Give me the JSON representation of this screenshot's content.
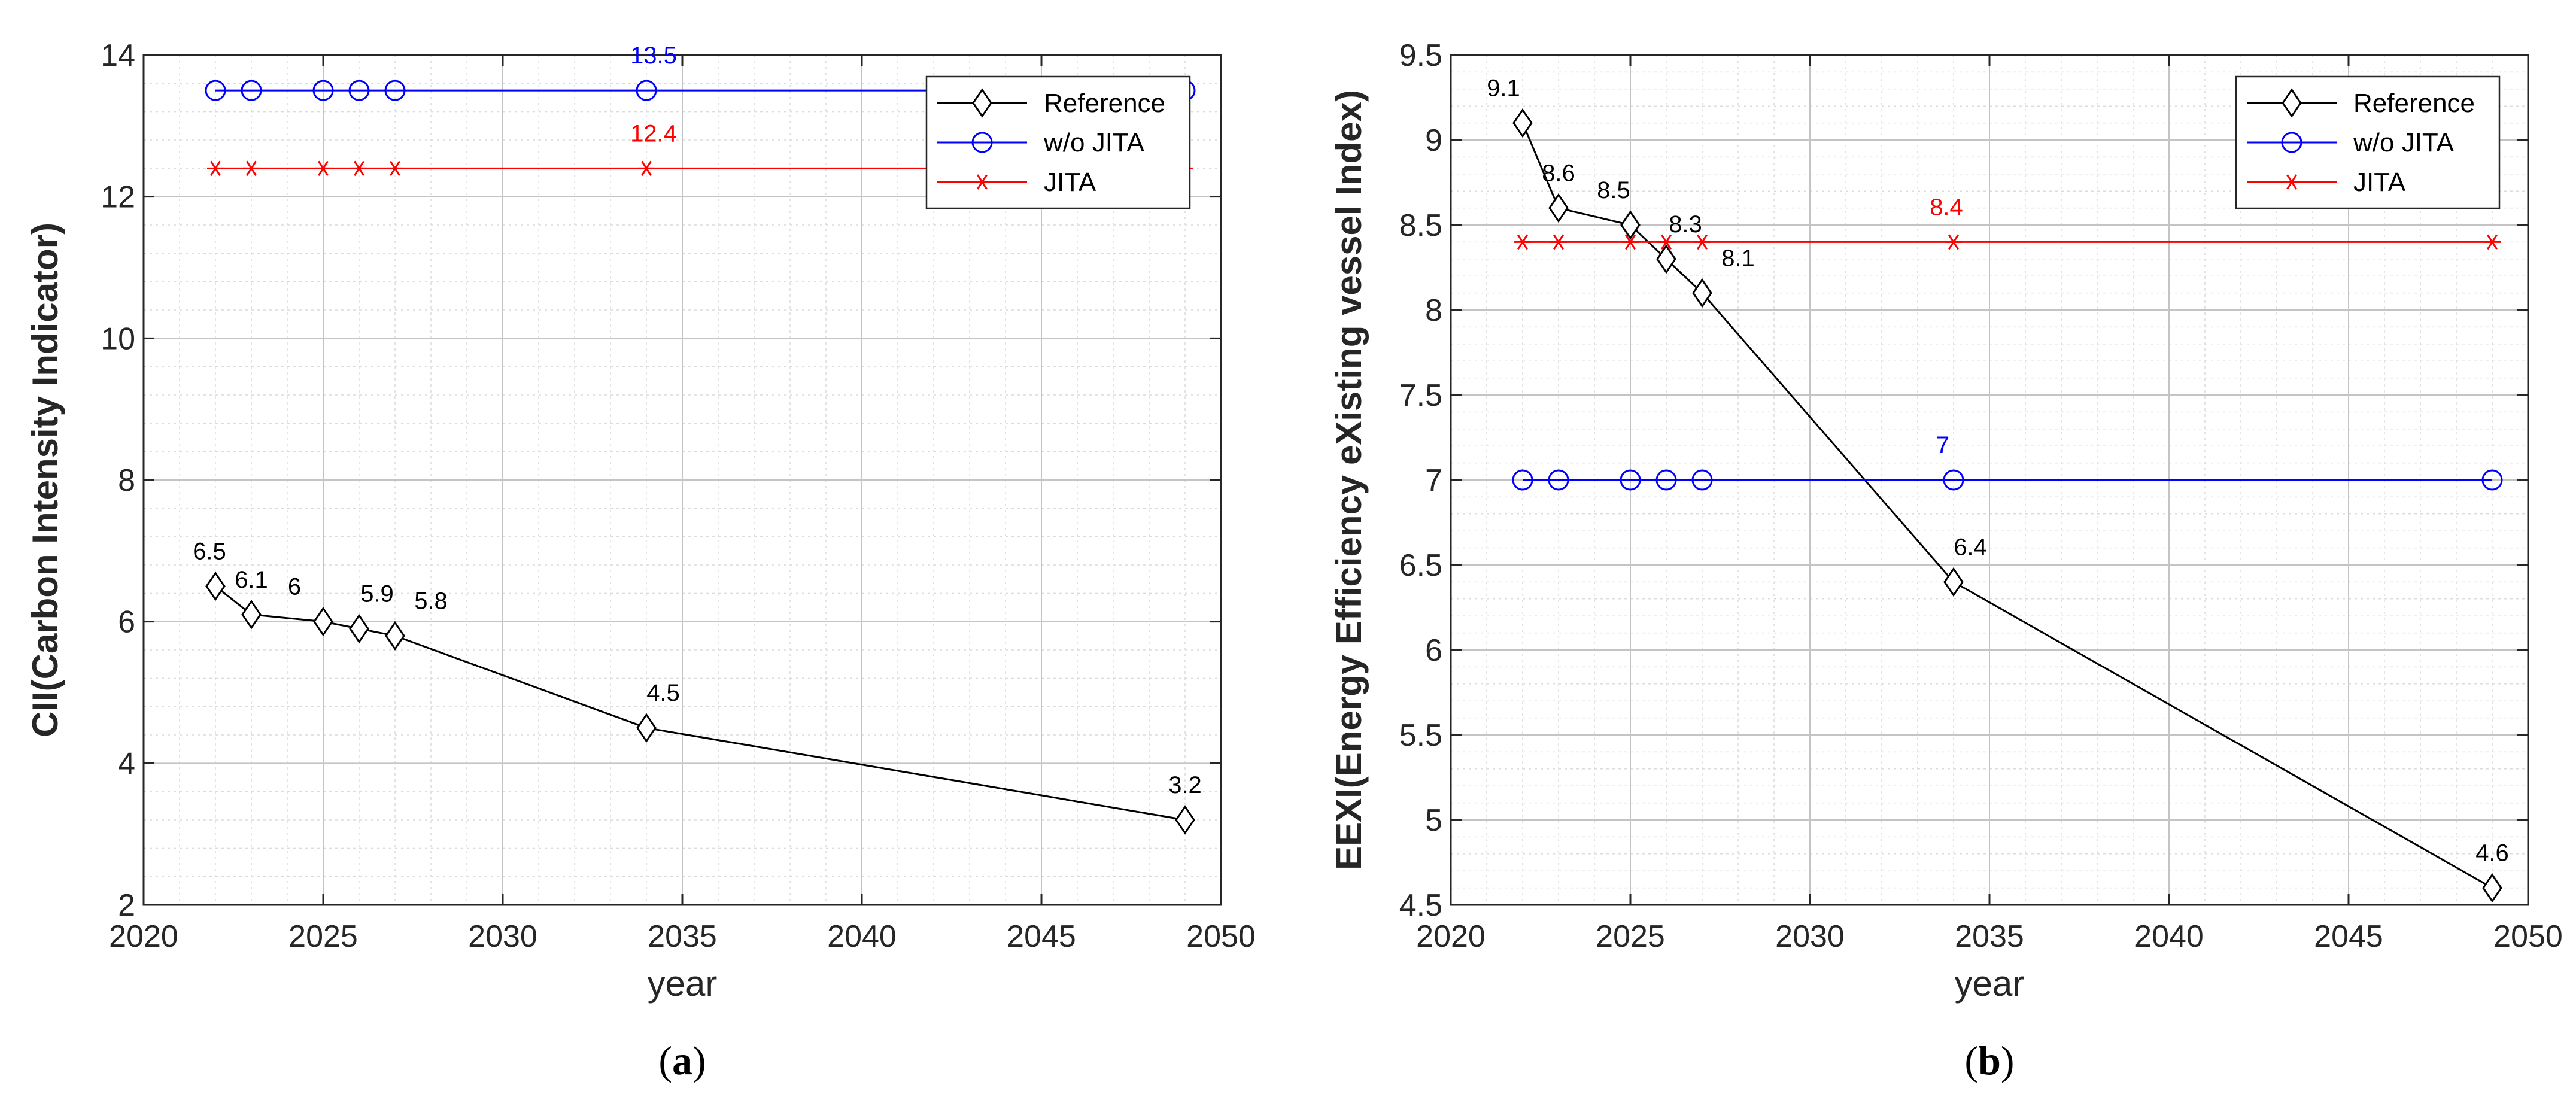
{
  "chart_data": [
    {
      "type": "line",
      "panel_label": "a",
      "caption_open": "(",
      "caption_close": ")",
      "xlabel": "year",
      "ylabel": "CII(Carbon Intensity Indicator)",
      "xlim": [
        2020,
        2050
      ],
      "ylim": [
        2,
        14
      ],
      "xticks": [
        2020,
        2025,
        2030,
        2035,
        2040,
        2045,
        2050
      ],
      "yticks": [
        2,
        4,
        6,
        8,
        10,
        12,
        14
      ],
      "grid": true,
      "legend_position": "top-right",
      "series": [
        {
          "name": "Reference",
          "color": "#000000",
          "marker": "diamond",
          "x": [
            2022,
            2023,
            2025,
            2026,
            2027,
            2034,
            2049
          ],
          "y": [
            6.5,
            6.1,
            6.0,
            5.9,
            5.8,
            4.5,
            3.2
          ]
        },
        {
          "name": "w/o JITA",
          "color": "#0000ff",
          "marker": "circle",
          "x": [
            2022,
            2023,
            2025,
            2026,
            2027,
            2034,
            2049
          ],
          "y": [
            13.5,
            13.5,
            13.5,
            13.5,
            13.5,
            13.5,
            13.5
          ]
        },
        {
          "name": "JITA",
          "color": "#ff0000",
          "marker": "asterisk",
          "x": [
            2022,
            2023,
            2025,
            2026,
            2027,
            2034,
            2049
          ],
          "y": [
            12.4,
            12.4,
            12.4,
            12.4,
            12.4,
            12.4,
            12.4
          ]
        }
      ],
      "annotations": [
        {
          "text": "6.5",
          "x": 2022,
          "y": 6.5,
          "series": 0,
          "dx": -10,
          "dy": -45
        },
        {
          "text": "6.1",
          "x": 2023,
          "y": 6.1,
          "series": 0,
          "dx": 0,
          "dy": -45
        },
        {
          "text": "6",
          "x": 2025,
          "y": 6.0,
          "series": 0,
          "dx": -48,
          "dy": -45
        },
        {
          "text": "5.9",
          "x": 2026,
          "y": 5.9,
          "series": 0,
          "dx": 30,
          "dy": -45
        },
        {
          "text": "5.8",
          "x": 2027,
          "y": 5.8,
          "series": 0,
          "dx": 60,
          "dy": -45
        },
        {
          "text": "4.5",
          "x": 2034,
          "y": 4.5,
          "series": 0,
          "dx": 28,
          "dy": -45
        },
        {
          "text": "3.2",
          "x": 2049,
          "y": 3.2,
          "series": 0,
          "dx": 0,
          "dy": -45
        },
        {
          "text": "13.5",
          "x": 2034,
          "y": 13.5,
          "series": 1,
          "dx": 12,
          "dy": -45
        },
        {
          "text": "12.4",
          "x": 2034,
          "y": 12.4,
          "series": 2,
          "dx": 12,
          "dy": -45
        }
      ]
    },
    {
      "type": "line",
      "panel_label": "b",
      "caption_open": "(",
      "caption_close": ")",
      "xlabel": "year",
      "ylabel": "EEXI(Energy Efficiency eXisting vessel Index)",
      "xlim": [
        2020,
        2050
      ],
      "ylim": [
        4.5,
        9.5
      ],
      "xticks": [
        2020,
        2025,
        2030,
        2035,
        2040,
        2045,
        2050
      ],
      "yticks": [
        4.5,
        5,
        5.5,
        6,
        6.5,
        7,
        7.5,
        8,
        8.5,
        9,
        9.5
      ],
      "grid": true,
      "legend_position": "top-right",
      "series": [
        {
          "name": "Reference",
          "color": "#000000",
          "marker": "diamond",
          "x": [
            2022,
            2023,
            2025,
            2026,
            2027,
            2034,
            2049
          ],
          "y": [
            9.1,
            8.6,
            8.5,
            8.3,
            8.1,
            6.4,
            4.6
          ]
        },
        {
          "name": "w/o JITA",
          "color": "#0000ff",
          "marker": "circle",
          "x": [
            2022,
            2023,
            2025,
            2026,
            2027,
            2034,
            2049
          ],
          "y": [
            7,
            7,
            7,
            7,
            7,
            7,
            7
          ]
        },
        {
          "name": "JITA",
          "color": "#ff0000",
          "marker": "asterisk",
          "x": [
            2022,
            2023,
            2025,
            2026,
            2027,
            2034,
            2049
          ],
          "y": [
            8.4,
            8.4,
            8.4,
            8.4,
            8.4,
            8.4,
            8.4
          ]
        }
      ],
      "annotations": [
        {
          "text": "9.1",
          "x": 2022,
          "y": 9.1,
          "series": 0,
          "dx": -32,
          "dy": -45
        },
        {
          "text": "8.6",
          "x": 2023,
          "y": 8.6,
          "series": 0,
          "dx": 0,
          "dy": -45
        },
        {
          "text": "8.5",
          "x": 2025,
          "y": 8.5,
          "series": 0,
          "dx": -28,
          "dy": -45
        },
        {
          "text": "8.3",
          "x": 2026,
          "y": 8.3,
          "series": 0,
          "dx": 32,
          "dy": -45
        },
        {
          "text": "8.1",
          "x": 2027,
          "y": 8.1,
          "series": 0,
          "dx": 60,
          "dy": -45
        },
        {
          "text": "6.4",
          "x": 2034,
          "y": 6.4,
          "series": 0,
          "dx": 28,
          "dy": -45
        },
        {
          "text": "4.6",
          "x": 2049,
          "y": 4.6,
          "series": 0,
          "dx": 0,
          "dy": -45
        },
        {
          "text": "7",
          "x": 2034,
          "y": 7,
          "series": 1,
          "dx": -18,
          "dy": -45
        },
        {
          "text": "8.4",
          "x": 2034,
          "y": 8.4,
          "series": 2,
          "dx": -12,
          "dy": -45
        }
      ]
    }
  ]
}
